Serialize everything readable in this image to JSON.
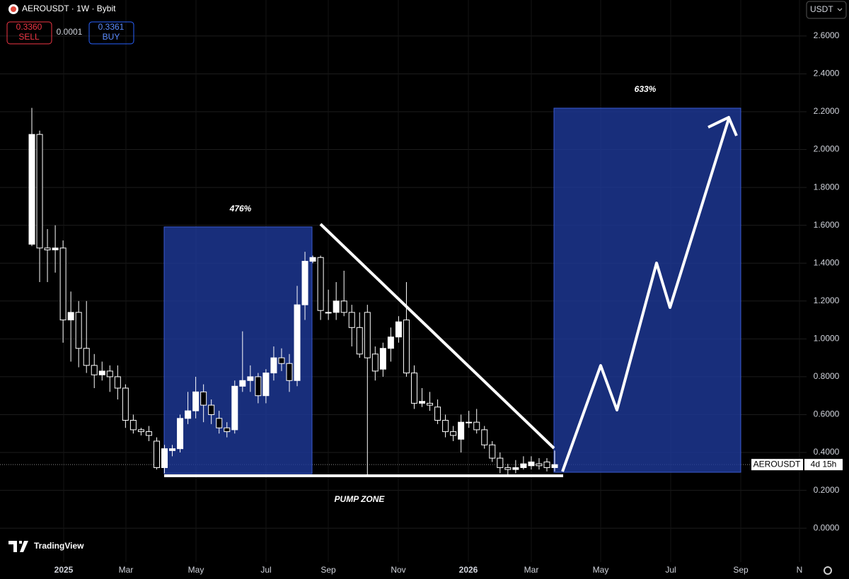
{
  "ui": {
    "symbol": "AEROUSDT · 1W · Bybit",
    "sell_price": "0.3360",
    "sell": "SELL",
    "spread": "0.0001",
    "buy_price": "0.3361",
    "buy": "BUY",
    "currency": "USDT",
    "price_tag": "AEROUSDT",
    "countdown": "4d 15h",
    "logo": "TradingView"
  },
  "chart_data": {
    "type": "candlestick",
    "open": [
      1.5,
      2.08,
      1.48,
      1.47,
      1.48,
      1.1,
      1.14,
      0.95,
      0.86,
      0.81,
      0.83,
      0.8,
      0.74,
      0.57,
      0.52,
      0.51,
      0.46,
      0.32,
      0.41,
      0.42,
      0.58,
      0.62,
      0.72,
      0.65,
      0.58,
      0.53,
      0.52,
      0.75,
      0.78,
      0.8,
      0.7,
      0.82,
      0.9,
      0.87,
      0.78,
      1.18,
      1.41,
      1.43,
      1.14,
      1.14,
      1.2,
      1.14,
      1.06,
      1.14,
      0.92,
      0.84,
      0.95,
      1.01,
      1.1,
      0.82,
      0.66,
      0.66,
      0.64,
      0.57,
      0.51,
      0.47,
      0.56,
      0.56,
      0.52,
      0.44,
      0.37,
      0.32,
      0.31,
      0.32,
      0.33,
      0.34,
      0.35,
      0.32
    ],
    "high": [
      2.22,
      2.1,
      1.58,
      1.6,
      1.52,
      1.25,
      1.2,
      1.2,
      0.92,
      0.88,
      0.86,
      0.86,
      0.76,
      0.6,
      0.53,
      0.54,
      0.48,
      0.44,
      0.44,
      0.6,
      0.72,
      0.8,
      0.76,
      0.68,
      0.62,
      0.56,
      0.78,
      1.04,
      0.86,
      0.82,
      0.84,
      0.96,
      0.95,
      0.92,
      1.28,
      1.46,
      1.44,
      1.44,
      1.26,
      1.3,
      1.36,
      1.18,
      1.14,
      1.18,
      0.96,
      0.98,
      1.06,
      1.12,
      1.3,
      0.86,
      0.74,
      0.72,
      0.68,
      0.6,
      0.54,
      0.6,
      0.62,
      0.63,
      0.54,
      0.46,
      0.4,
      0.34,
      0.36,
      0.38,
      0.38,
      0.37,
      0.37,
      0.41
    ],
    "low": [
      1.49,
      1.3,
      1.3,
      1.35,
      0.98,
      0.88,
      0.85,
      0.82,
      0.74,
      0.78,
      0.72,
      0.68,
      0.53,
      0.5,
      0.49,
      0.46,
      0.31,
      0.29,
      0.38,
      0.4,
      0.55,
      0.58,
      0.56,
      0.55,
      0.5,
      0.48,
      0.5,
      0.72,
      0.72,
      0.66,
      0.66,
      0.78,
      0.83,
      0.72,
      0.75,
      1.1,
      1.4,
      1.1,
      1.1,
      1.1,
      1.12,
      0.96,
      0.9,
      0.28,
      0.78,
      0.8,
      0.88,
      0.98,
      0.8,
      0.63,
      0.64,
      0.62,
      0.55,
      0.48,
      0.46,
      0.4,
      0.53,
      0.5,
      0.42,
      0.35,
      0.29,
      0.28,
      0.29,
      0.31,
      0.31,
      0.31,
      0.3,
      0.3
    ],
    "close": [
      2.08,
      1.48,
      1.47,
      1.48,
      1.1,
      1.14,
      0.95,
      0.86,
      0.81,
      0.83,
      0.8,
      0.74,
      0.57,
      0.52,
      0.51,
      0.49,
      0.32,
      0.42,
      0.42,
      0.58,
      0.62,
      0.72,
      0.65,
      0.6,
      0.53,
      0.51,
      0.75,
      0.78,
      0.8,
      0.7,
      0.82,
      0.9,
      0.87,
      0.78,
      1.18,
      1.41,
      1.43,
      1.15,
      1.14,
      1.2,
      1.14,
      1.06,
      0.92,
      0.9,
      0.83,
      0.95,
      1.01,
      1.09,
      0.82,
      0.66,
      0.67,
      0.65,
      0.57,
      0.51,
      0.49,
      0.56,
      0.56,
      0.52,
      0.44,
      0.37,
      0.32,
      0.31,
      0.32,
      0.34,
      0.35,
      0.33,
      0.32,
      0.336
    ],
    "up_color": "#ffffff",
    "down_color": "#000000",
    "x_labels": [
      "2025",
      "Mar",
      "May",
      "Jul",
      "Sep",
      "Nov",
      "2026",
      "Mar",
      "May",
      "Jul",
      "Sep",
      "N"
    ],
    "ylim": [
      -0.16,
      2.79
    ],
    "yticks": [
      {
        "value": 0,
        "label": "0.0000"
      },
      {
        "value": 0.2,
        "label": "0.2000"
      },
      {
        "value": 0.4,
        "label": "0.4000"
      },
      {
        "value": 0.6,
        "label": "0.6000"
      },
      {
        "value": 0.8,
        "label": "0.8000"
      },
      {
        "value": 1,
        "label": "1.0000"
      },
      {
        "value": 1.2,
        "label": "1.2000"
      },
      {
        "value": 1.4,
        "label": "1.4000"
      },
      {
        "value": 1.6,
        "label": "1.6000"
      },
      {
        "value": 1.8,
        "label": "1.8000"
      },
      {
        "value": 2,
        "label": "2.0000"
      },
      {
        "value": 2.2,
        "label": "2.2000"
      },
      {
        "value": 2.4,
        "label": "2.4000"
      },
      {
        "value": 2.6,
        "label": "2.6000"
      }
    ],
    "grid": true,
    "annotations": [
      "476%",
      "633%",
      "PUMP ZONE"
    ]
  }
}
